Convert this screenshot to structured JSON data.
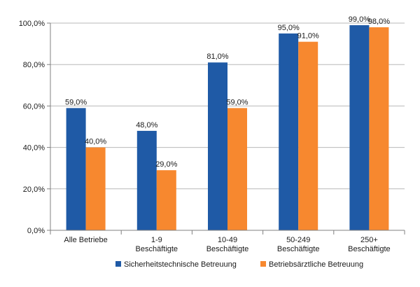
{
  "chart_data": {
    "type": "bar",
    "categories": [
      [
        "Alle Betriebe"
      ],
      [
        "1-9",
        "Beschäftigte"
      ],
      [
        "10-49",
        "Beschäftigte"
      ],
      [
        "50-249",
        "Beschäftigte"
      ],
      [
        "250+",
        "Beschäftigte"
      ]
    ],
    "series": [
      {
        "name": "Sicherheitstechnische Betreuung",
        "color": "#1f5aa6",
        "values": [
          59.0,
          48.0,
          81.0,
          95.0,
          99.0
        ]
      },
      {
        "name": "Betriebsärztliche Betreuung",
        "color": "#f7882f",
        "values": [
          40.0,
          29.0,
          59.0,
          91.0,
          98.0
        ]
      }
    ],
    "data_labels": [
      [
        "59,0%",
        "48,0%",
        "81,0%",
        "95,0%",
        "99,0%"
      ],
      [
        "40,0%",
        "29,0%",
        "59,0%",
        "91,0%",
        "98,0%"
      ]
    ],
    "y_ticks": [
      "0,0%",
      "20,0%",
      "40,0%",
      "60,0%",
      "80,0%",
      "100,0%"
    ],
    "ylim": [
      0,
      100
    ],
    "grid": true,
    "legend_position": "bottom"
  }
}
